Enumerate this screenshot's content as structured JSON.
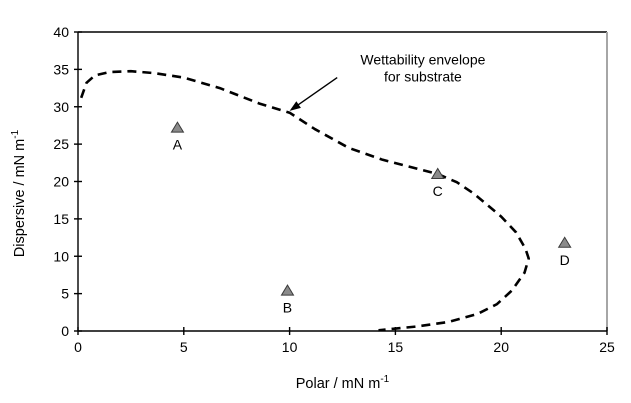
{
  "chart_data": {
    "type": "scatter",
    "title": "",
    "xlabel": {
      "text": "Polar / mN m",
      "sup": "-1"
    },
    "ylabel": {
      "text": "Dispersive / mN m",
      "sup": "-1"
    },
    "xlim": [
      0,
      25
    ],
    "ylim": [
      0,
      40
    ],
    "xticks": [
      0,
      5,
      10,
      15,
      20,
      25
    ],
    "yticks": [
      0,
      5,
      10,
      15,
      20,
      25,
      30,
      35,
      40
    ],
    "grid": false,
    "legend": "none",
    "points": [
      {
        "label": "A",
        "x": 4.7,
        "y": 27.2
      },
      {
        "label": "B",
        "x": 9.9,
        "y": 5.4
      },
      {
        "label": "C",
        "x": 17.0,
        "y": 21.0
      },
      {
        "label": "D",
        "x": 23.0,
        "y": 11.8
      }
    ],
    "marker": {
      "shape": "triangle-up",
      "fill": "#8a8a8a",
      "stroke": "#3a3a3a"
    },
    "envelope": {
      "name": "Wettability envelope for substrate",
      "line_style": "dashed",
      "color": "#000000",
      "points": [
        [
          0.15,
          31.2
        ],
        [
          0.4,
          33.2
        ],
        [
          0.8,
          34.2
        ],
        [
          1.5,
          34.65
        ],
        [
          2.5,
          34.75
        ],
        [
          3.6,
          34.5
        ],
        [
          5.0,
          33.9
        ],
        [
          6.7,
          32.5
        ],
        [
          8.6,
          30.4
        ],
        [
          10.0,
          29.2
        ],
        [
          11.2,
          27.0
        ],
        [
          12.8,
          24.5
        ],
        [
          14.4,
          22.9
        ],
        [
          15.9,
          21.8
        ],
        [
          17.0,
          21.0
        ],
        [
          17.9,
          19.9
        ],
        [
          18.7,
          18.4
        ],
        [
          20.0,
          15.3
        ],
        [
          20.7,
          13.2
        ],
        [
          21.15,
          11.0
        ],
        [
          21.3,
          9.7
        ],
        [
          21.1,
          7.8
        ],
        [
          20.5,
          5.4
        ],
        [
          19.8,
          3.6
        ],
        [
          18.9,
          2.3
        ],
        [
          17.5,
          1.2
        ],
        [
          16.0,
          0.6
        ],
        [
          14.9,
          0.3
        ],
        [
          14.2,
          0.1
        ]
      ]
    },
    "annotation": {
      "lines": [
        "Wettability envelope",
        "for substrate"
      ],
      "text_x": 16.3,
      "text_y": 36.3,
      "arrow_tail_xy": [
        12.25,
        33.9
      ],
      "arrow_tip_xy": [
        10.0,
        29.45
      ]
    },
    "colors": {
      "axis": "#000000",
      "frame_right": "#a6a6a6",
      "text": "#000000",
      "background": "#ffffff"
    }
  }
}
